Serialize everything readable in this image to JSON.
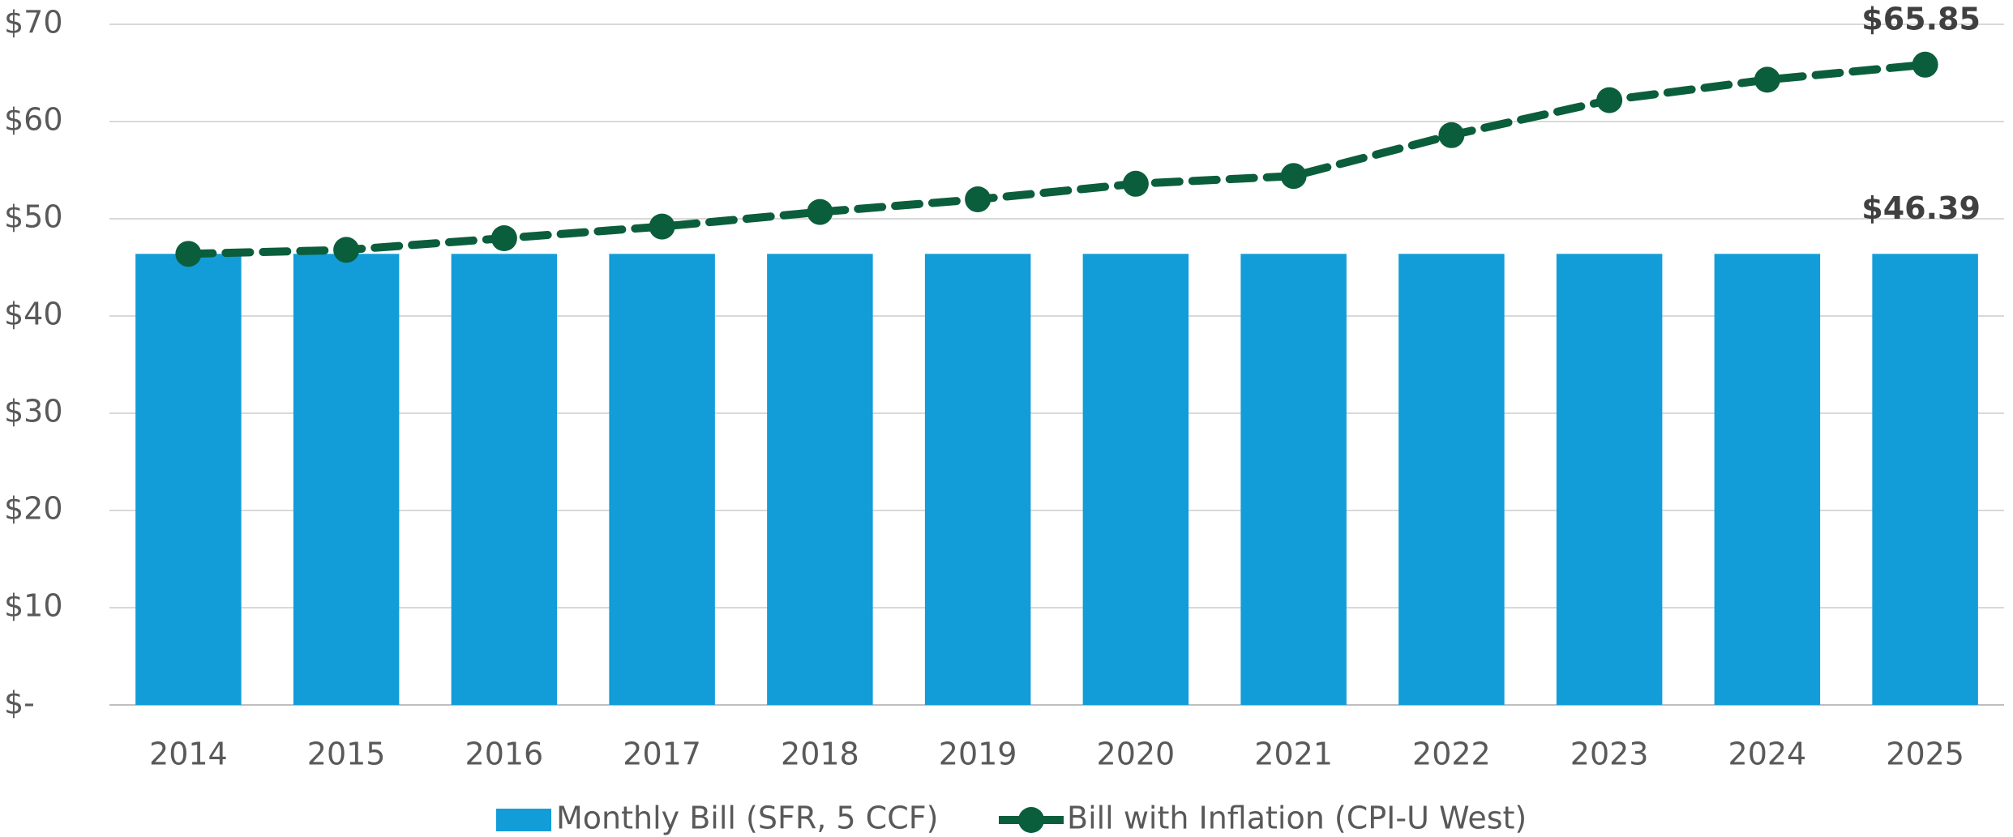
{
  "chart_data": {
    "type": "bar",
    "categories": [
      "2014",
      "2015",
      "2016",
      "2017",
      "2018",
      "2019",
      "2020",
      "2021",
      "2022",
      "2023",
      "2024",
      "2025"
    ],
    "series": [
      {
        "name": "Monthly Bill (SFR, 5 CCF)",
        "type": "bar",
        "color": "#129dd9",
        "values": [
          46.39,
          46.39,
          46.39,
          46.39,
          46.39,
          46.39,
          46.39,
          46.39,
          46.39,
          46.39,
          46.39,
          46.39
        ],
        "value_labels": [
          null,
          null,
          null,
          null,
          null,
          null,
          null,
          null,
          null,
          null,
          null,
          "$46.39"
        ]
      },
      {
        "name": "Bill with Inflation (CPI-U West)",
        "type": "line",
        "color": "#0b5e3c",
        "values": [
          46.39,
          46.8,
          48.0,
          49.2,
          50.7,
          52.0,
          53.6,
          54.4,
          58.6,
          62.2,
          64.3,
          65.85
        ],
        "value_labels": [
          null,
          null,
          null,
          null,
          null,
          null,
          null,
          null,
          null,
          null,
          null,
          "$65.85"
        ]
      }
    ],
    "ylim": [
      0,
      70
    ],
    "yticks": [
      {
        "value": 0,
        "label": "$-"
      },
      {
        "value": 10,
        "label": "$10"
      },
      {
        "value": 20,
        "label": "$20"
      },
      {
        "value": 30,
        "label": "$30"
      },
      {
        "value": 40,
        "label": "$40"
      },
      {
        "value": 50,
        "label": "$50"
      },
      {
        "value": 60,
        "label": "$60"
      },
      {
        "value": 70,
        "label": "$70"
      }
    ],
    "grid": true,
    "legend": "bottom"
  }
}
